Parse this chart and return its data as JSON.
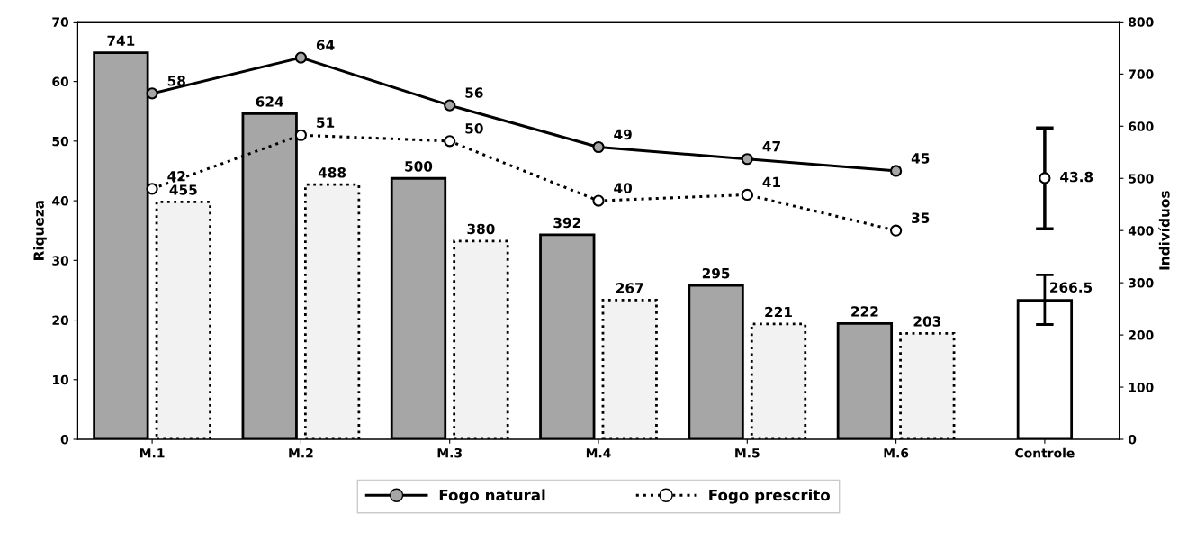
{
  "chart_data": {
    "type": "bar",
    "ylabel": "Riqueza",
    "y2label": "Indivíduos",
    "categories": [
      "M.1",
      "M.2",
      "M.3",
      "M.4",
      "M.5",
      "M.6",
      "Controle"
    ],
    "ylim": [
      0,
      70
    ],
    "yticks": [
      0,
      10,
      20,
      30,
      40,
      50,
      60,
      70
    ],
    "y2lim": [
      0,
      800
    ],
    "y2ticks": [
      0,
      100,
      200,
      300,
      400,
      500,
      600,
      700,
      800
    ],
    "grid": false,
    "legend": "bottom",
    "data_labels": true,
    "series": [
      {
        "axis": "y2",
        "color": "#a6a6a6",
        "line_style": "solid",
        "values": [
          741,
          624,
          500,
          392,
          295,
          222,
          null
        ]
      },
      {
        "axis": "y2",
        "color": "#f2f2f2",
        "line_style": "dotted",
        "values": [
          455,
          488,
          380,
          267,
          221,
          203,
          null
        ]
      },
      {
        "axis": "y2",
        "color": "#ffffff",
        "line_style": "solid",
        "values": [
          null,
          null,
          null,
          null,
          null,
          null,
          266.5
        ],
        "errors": [
          null,
          null,
          null,
          null,
          null,
          null,
          [
            220,
            315
          ]
        ]
      },
      {
        "type": "line",
        "axis": "y",
        "name": "Fogo natural",
        "color": "#a6a6a6",
        "marker": "circle",
        "line_style": "solid",
        "values": [
          58,
          64,
          56,
          49,
          47,
          45,
          null
        ]
      },
      {
        "type": "line",
        "axis": "y",
        "name": "Fogo prescrito",
        "color": "#ffffff",
        "marker": "circle",
        "line_style": "dotted",
        "values": [
          42,
          51,
          50,
          40,
          41,
          35,
          null
        ]
      },
      {
        "type": "scatter",
        "axis": "y",
        "color": "#ffffff",
        "marker": "circle",
        "values": [
          null,
          null,
          null,
          null,
          null,
          null,
          43.8
        ],
        "errors": [
          null,
          null,
          null,
          null,
          null,
          null,
          [
            35.3,
            52.2
          ]
        ]
      }
    ]
  }
}
